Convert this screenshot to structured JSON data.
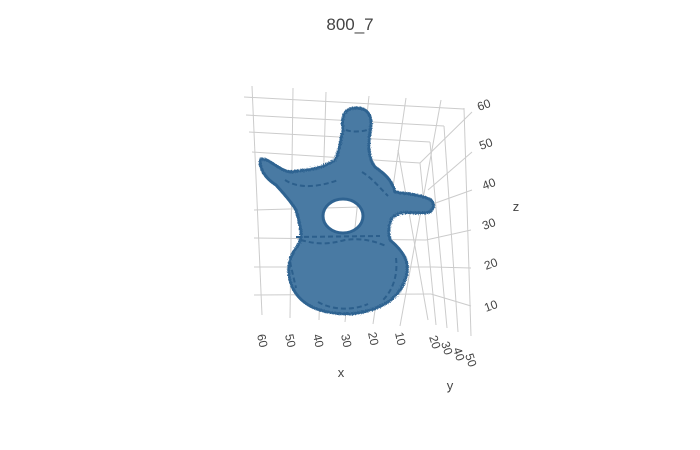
{
  "chart_data": {
    "type": "surface",
    "title": "800_7",
    "axes": {
      "x": {
        "label": "x",
        "ticks": [
          "60",
          "50",
          "40",
          "30",
          "20",
          "10"
        ]
      },
      "y": {
        "label": "y",
        "ticks": [
          "20",
          "30",
          "40",
          "50"
        ]
      },
      "z": {
        "label": "z",
        "ticks": [
          "10",
          "20",
          "30",
          "40",
          "50",
          "60"
        ]
      }
    },
    "grid": true,
    "legend": "none",
    "surface_color": "#4a7aa3",
    "edge_color": "#2f6391"
  }
}
